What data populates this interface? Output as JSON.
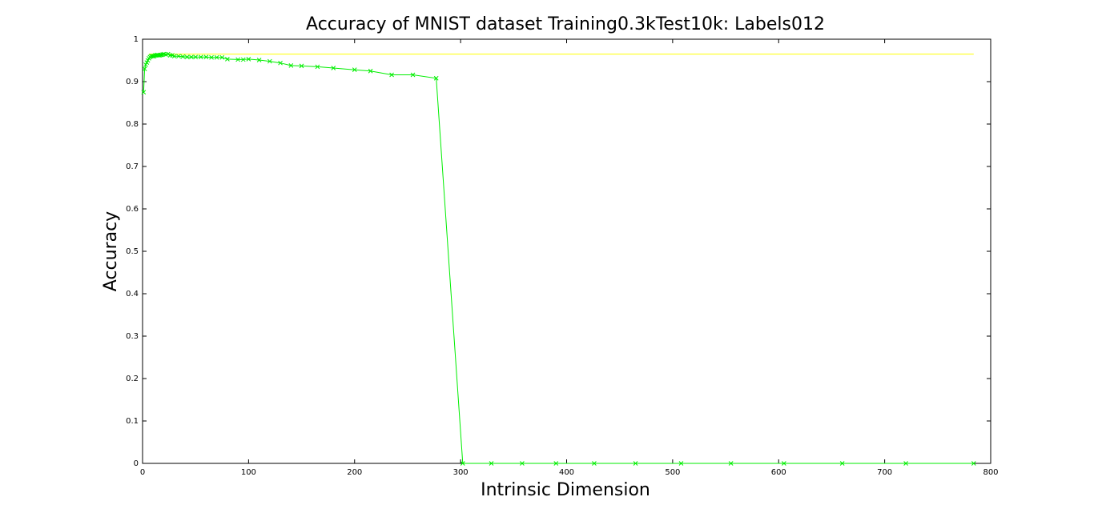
{
  "chart_data": {
    "type": "line",
    "title": "Accuracy of MNIST dataset Training0.3kTest10k: Labels012",
    "xlabel": "Intrinsic Dimension",
    "ylabel": "Accuracy",
    "xlim": [
      0,
      800
    ],
    "ylim": [
      0,
      1
    ],
    "xticks": [
      0,
      100,
      200,
      300,
      400,
      500,
      600,
      700,
      800
    ],
    "yticks": [
      0,
      0.1,
      0.2,
      0.3,
      0.4,
      0.5,
      0.6,
      0.7,
      0.8,
      0.9,
      1
    ],
    "ytick_labels": [
      "0",
      "0.1",
      "0.2",
      "0.3",
      "0.4",
      "0.5",
      "0.6",
      "0.7",
      "0.8",
      "0.9",
      "1"
    ],
    "grid": false,
    "series": [
      {
        "color": "#ffff00",
        "marker": "none",
        "x": [
          6,
          784
        ],
        "y": [
          0.965,
          0.965
        ]
      },
      {
        "color": "#00ee00",
        "marker": "x",
        "x": [
          1,
          2,
          3,
          4,
          5,
          6,
          7,
          8,
          9,
          10,
          11,
          12,
          13,
          14,
          15,
          16,
          17,
          18,
          19,
          20,
          22,
          24,
          26,
          28,
          30,
          34,
          38,
          42,
          46,
          50,
          55,
          60,
          65,
          70,
          75,
          80,
          90,
          95,
          100,
          110,
          120,
          130,
          140,
          150,
          165,
          180,
          200,
          215,
          235,
          255,
          277,
          302,
          329,
          358,
          390,
          426,
          465,
          508,
          555,
          605,
          660,
          720,
          784
        ],
        "y": [
          0.875,
          0.93,
          0.94,
          0.945,
          0.95,
          0.955,
          0.958,
          0.96,
          0.96,
          0.96,
          0.96,
          0.962,
          0.962,
          0.963,
          0.962,
          0.962,
          0.963,
          0.963,
          0.964,
          0.965,
          0.964,
          0.965,
          0.962,
          0.962,
          0.96,
          0.96,
          0.959,
          0.958,
          0.958,
          0.958,
          0.958,
          0.958,
          0.957,
          0.957,
          0.957,
          0.953,
          0.952,
          0.952,
          0.953,
          0.951,
          0.948,
          0.944,
          0.938,
          0.937,
          0.935,
          0.932,
          0.928,
          0.925,
          0.916,
          0.916,
          0.908,
          0.0,
          0.0,
          0.0,
          0.0,
          0.0,
          0.0,
          0.0,
          0.0,
          0.0,
          0.0,
          0.0,
          0.0
        ]
      }
    ]
  }
}
